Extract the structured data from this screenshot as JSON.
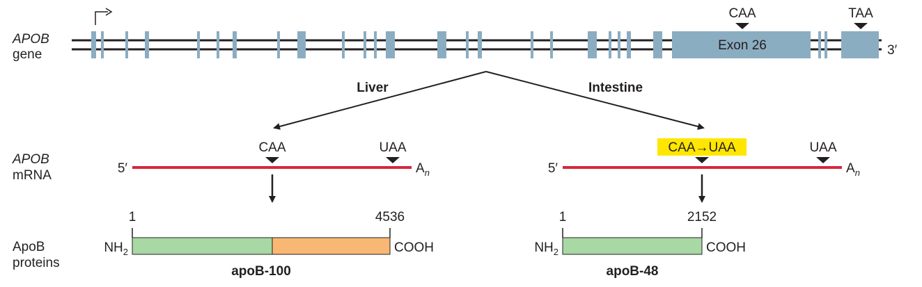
{
  "gene": {
    "name": "APOB",
    "label": "gene",
    "exon26_label": "Exon 26",
    "codon_caa": "CAA",
    "codon_taa": "TAA",
    "three_prime": "3′"
  },
  "tissues": {
    "liver": "Liver",
    "intestine": "Intestine"
  },
  "mrna": {
    "name": "APOB",
    "label": "mRNA",
    "five_prime": "5′",
    "tail_a": "A",
    "tail_sub": "n",
    "liver_caa": "CAA",
    "liver_uaa": "UAA",
    "edited": "CAA→UAA",
    "intestine_uaa": "UAA"
  },
  "proteins": {
    "label_line1": "ApoB",
    "label_line2": "proteins",
    "nh_main": "NH",
    "nh_sub": "2",
    "cooh": "COOH",
    "apob100": {
      "name": "apoB-100",
      "start": "1",
      "end": "4536"
    },
    "apob48": {
      "name": "apoB-48",
      "start": "1",
      "end": "2152"
    }
  },
  "colors": {
    "exon": "#8badc2",
    "mrna": "#d7263d",
    "highlight": "#ffe600",
    "green": "#a8d8a4",
    "orange": "#f8b874",
    "line": "#231f20"
  },
  "icons": [
    "transcription-start-arrow-icon",
    "triangle-marker-icon",
    "down-arrow-icon"
  ]
}
